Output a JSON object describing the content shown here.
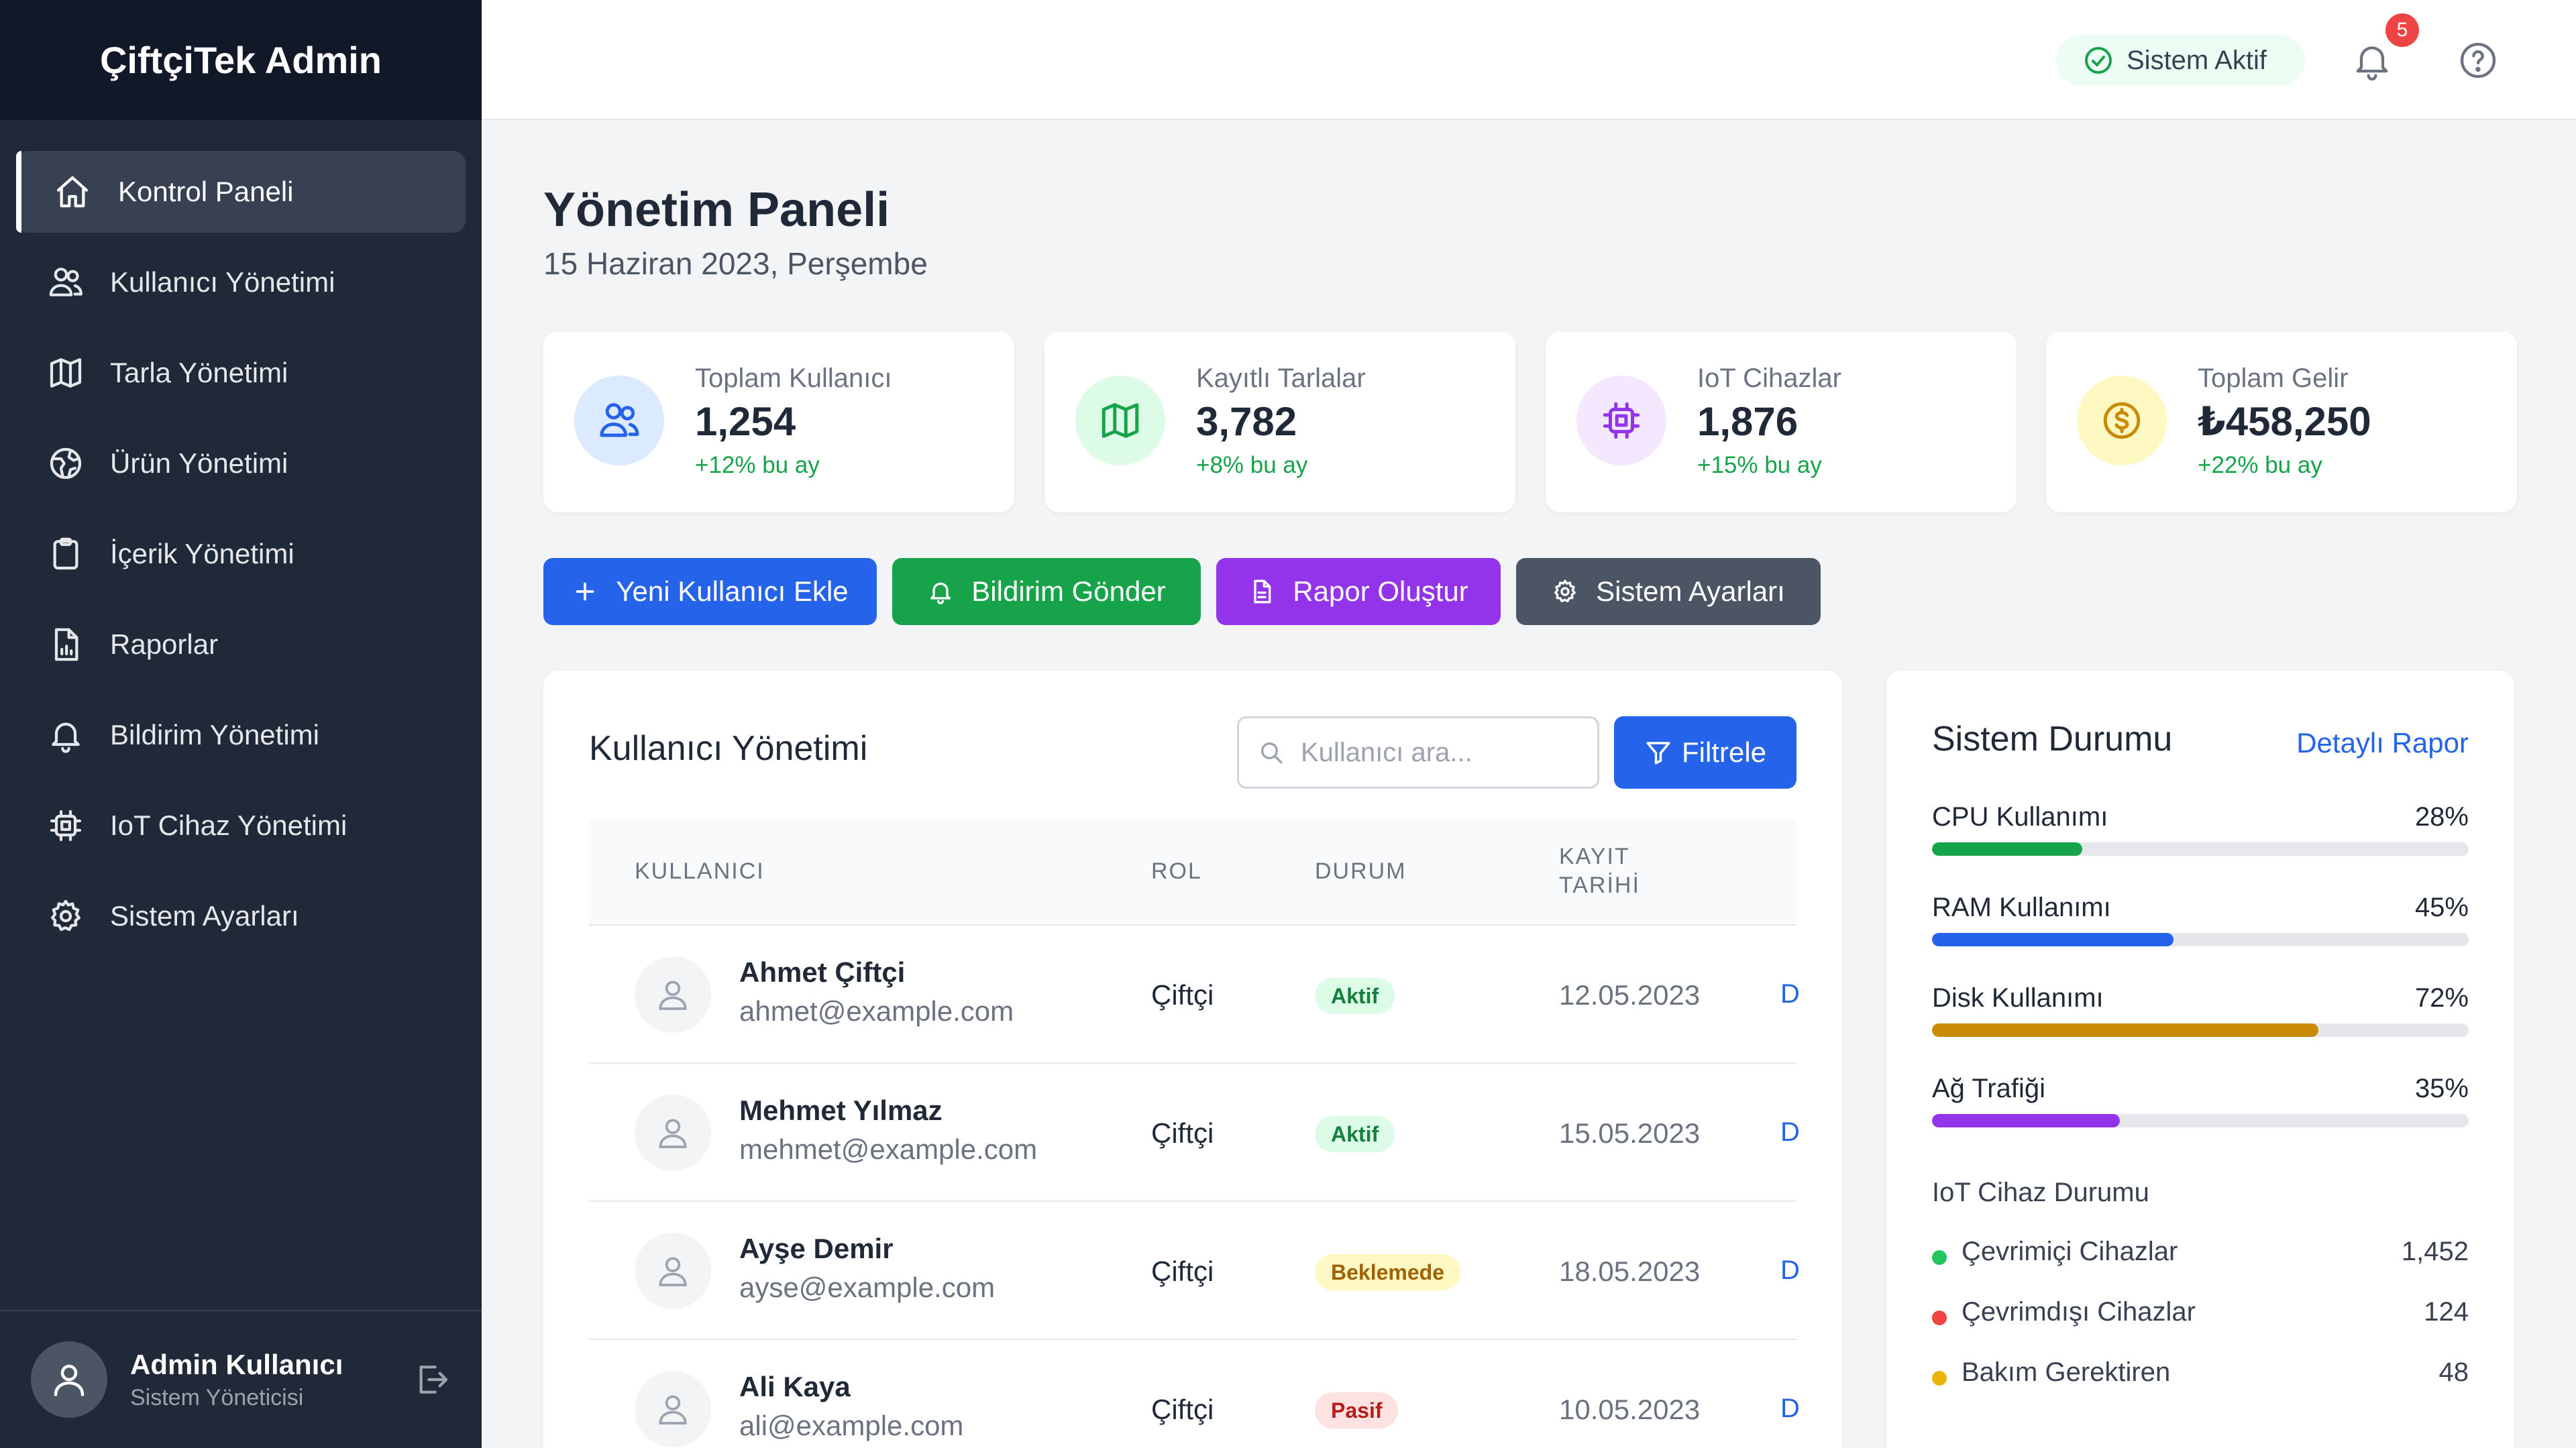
{
  "app": {
    "title": "ÇiftçiTek Admin"
  },
  "sidebar": {
    "items": [
      {
        "label": "Kontrol Paneli"
      },
      {
        "label": "Kullanıcı Yönetimi"
      },
      {
        "label": "Tarla Yönetimi"
      },
      {
        "label": "Ürün Yönetimi"
      },
      {
        "label": "İçerik Yönetimi"
      },
      {
        "label": "Raporlar"
      },
      {
        "label": "Bildirim Yönetimi"
      },
      {
        "label": "IoT Cihaz Yönetimi"
      },
      {
        "label": "Sistem Ayarları"
      }
    ],
    "user": {
      "name": "Admin Kullanıcı",
      "role": "Sistem Yöneticisi"
    }
  },
  "header": {
    "status": "Sistem Aktif",
    "notification_count": "5"
  },
  "page": {
    "title": "Yönetim Paneli",
    "date": "15 Haziran 2023, Perşembe"
  },
  "stats": [
    {
      "label": "Toplam Kullanıcı",
      "value": "1,254",
      "change": "+12% bu ay"
    },
    {
      "label": "Kayıtlı Tarlalar",
      "value": "3,782",
      "change": "+8% bu ay"
    },
    {
      "label": "IoT Cihazlar",
      "value": "1,876",
      "change": "+15% bu ay"
    },
    {
      "label": "Toplam Gelir",
      "value": "₺458,250",
      "change": "+22% bu ay"
    }
  ],
  "actions": {
    "add_user": "Yeni Kullanıcı Ekle",
    "send_notification": "Bildirim Gönder",
    "create_report": "Rapor Oluştur",
    "settings": "Sistem Ayarları"
  },
  "users": {
    "title": "Kullanıcı Yönetimi",
    "search_placeholder": "Kullanıcı ara...",
    "filter_label": "Filtrele",
    "columns": {
      "user": "KULLANICI",
      "role": "ROL",
      "status": "DURUM",
      "date_line1": "KAYIT",
      "date_line2": "TARİHİ"
    },
    "rows": [
      {
        "name": "Ahmet Çiftçi",
        "email": "ahmet@example.com",
        "role": "Çiftçi",
        "status": "Aktif",
        "date": "12.05.2023",
        "action": "D"
      },
      {
        "name": "Mehmet Yılmaz",
        "email": "mehmet@example.com",
        "role": "Çiftçi",
        "status": "Aktif",
        "date": "15.05.2023",
        "action": "D"
      },
      {
        "name": "Ayşe Demir",
        "email": "ayse@example.com",
        "role": "Çiftçi",
        "status": "Beklemede",
        "date": "18.05.2023",
        "action": "D"
      },
      {
        "name": "Ali Kaya",
        "email": "ali@example.com",
        "role": "Çiftçi",
        "status": "Pasif",
        "date": "10.05.2023",
        "action": "D"
      }
    ]
  },
  "system": {
    "title": "Sistem Durumu",
    "link": "Detaylı Rapor",
    "metrics": [
      {
        "label": "CPU Kullanımı",
        "value": "28%",
        "percent": 28,
        "color": "#16a34a"
      },
      {
        "label": "RAM Kullanımı",
        "value": "45%",
        "percent": 45,
        "color": "#2563eb"
      },
      {
        "label": "Disk Kullanımı",
        "value": "72%",
        "percent": 72,
        "color": "#ca8a04"
      },
      {
        "label": "Ağ Trafiği",
        "value": "35%",
        "percent": 35,
        "color": "#9333ea"
      }
    ],
    "iot_title": "IoT Cihaz Durumu",
    "iot": [
      {
        "label": "Çevrimiçi Cihazlar",
        "value": "1,452",
        "color": "#22c55e"
      },
      {
        "label": "Çevrimdışı Cihazlar",
        "value": "124",
        "color": "#ef4444"
      },
      {
        "label": "Bakım Gerektiren",
        "value": "48",
        "color": "#eab308"
      }
    ]
  },
  "colors": {
    "sidebar": "#1f2937",
    "brand_bg": "#111827",
    "primary": "#2563eb",
    "success": "#16a34a",
    "purple": "#9333ea",
    "gray_button": "#4b5563"
  }
}
